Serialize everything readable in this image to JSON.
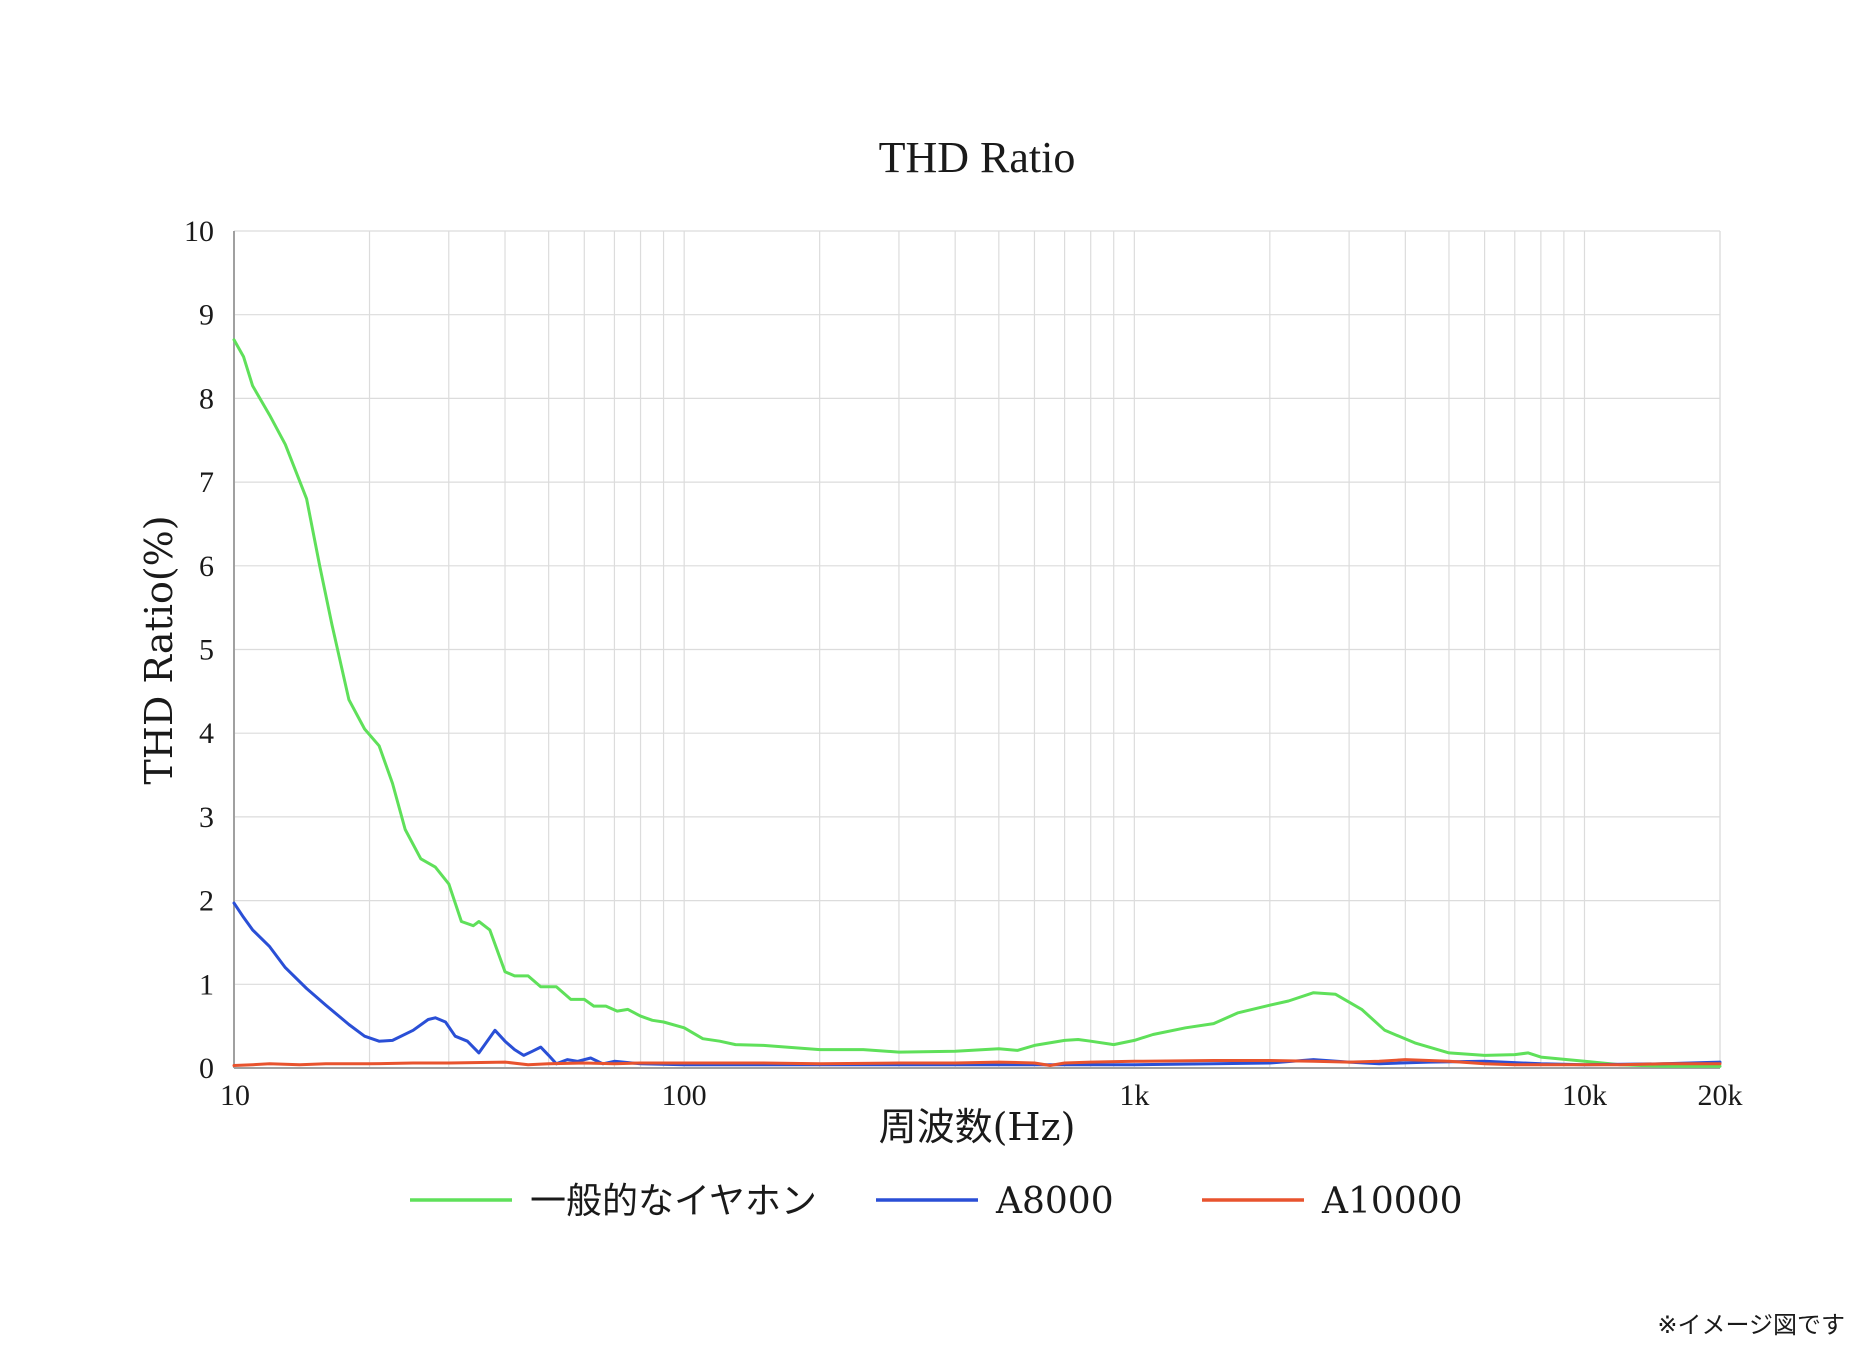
{
  "chart_data": {
    "type": "line",
    "title": "THD Ratio",
    "xlabel": "周波数(Hz)",
    "ylabel": "THD Ratio(%)",
    "x_scale": "log",
    "xlim": [
      10,
      20000
    ],
    "ylim": [
      0,
      10
    ],
    "x_ticks": [
      {
        "value": 10,
        "label": "10"
      },
      {
        "value": 100,
        "label": "100"
      },
      {
        "value": 1000,
        "label": "1k"
      },
      {
        "value": 10000,
        "label": "10k"
      },
      {
        "value": 20000,
        "label": "20k"
      }
    ],
    "y_ticks": [
      {
        "value": 0,
        "label": "0"
      },
      {
        "value": 1,
        "label": "1"
      },
      {
        "value": 2,
        "label": "2"
      },
      {
        "value": 3,
        "label": "3"
      },
      {
        "value": 4,
        "label": "4"
      },
      {
        "value": 5,
        "label": "5"
      },
      {
        "value": 6,
        "label": "6"
      },
      {
        "value": 7,
        "label": "7"
      },
      {
        "value": 8,
        "label": "8"
      },
      {
        "value": 9,
        "label": "9"
      },
      {
        "value": 10,
        "label": "10"
      }
    ],
    "grid": true,
    "legend_position": "bottom",
    "series": [
      {
        "name": "一般的なイヤホン",
        "color": "#5fe05a",
        "points": [
          [
            10,
            8.7
          ],
          [
            10.5,
            8.5
          ],
          [
            11,
            8.15
          ],
          [
            12,
            7.8
          ],
          [
            13,
            7.45
          ],
          [
            14.5,
            6.8
          ],
          [
            15.5,
            6.0
          ],
          [
            16.5,
            5.3
          ],
          [
            18,
            4.4
          ],
          [
            19.5,
            4.05
          ],
          [
            21,
            3.85
          ],
          [
            22.5,
            3.4
          ],
          [
            24,
            2.85
          ],
          [
            26,
            2.5
          ],
          [
            28,
            2.4
          ],
          [
            30,
            2.2
          ],
          [
            32,
            1.75
          ],
          [
            34,
            1.7
          ],
          [
            35,
            1.75
          ],
          [
            37,
            1.65
          ],
          [
            40,
            1.15
          ],
          [
            42,
            1.1
          ],
          [
            45,
            1.1
          ],
          [
            48,
            0.97
          ],
          [
            52,
            0.97
          ],
          [
            56,
            0.82
          ],
          [
            60,
            0.82
          ],
          [
            63,
            0.74
          ],
          [
            67,
            0.74
          ],
          [
            71,
            0.68
          ],
          [
            75,
            0.7
          ],
          [
            80,
            0.62
          ],
          [
            85,
            0.57
          ],
          [
            90,
            0.55
          ],
          [
            100,
            0.48
          ],
          [
            110,
            0.35
          ],
          [
            120,
            0.32
          ],
          [
            130,
            0.28
          ],
          [
            150,
            0.27
          ],
          [
            200,
            0.22
          ],
          [
            250,
            0.22
          ],
          [
            300,
            0.19
          ],
          [
            400,
            0.2
          ],
          [
            500,
            0.23
          ],
          [
            550,
            0.21
          ],
          [
            600,
            0.27
          ],
          [
            700,
            0.33
          ],
          [
            750,
            0.34
          ],
          [
            800,
            0.32
          ],
          [
            900,
            0.28
          ],
          [
            1000,
            0.33
          ],
          [
            1100,
            0.4
          ],
          [
            1300,
            0.48
          ],
          [
            1500,
            0.53
          ],
          [
            1700,
            0.66
          ],
          [
            2000,
            0.75
          ],
          [
            2200,
            0.8
          ],
          [
            2500,
            0.9
          ],
          [
            2800,
            0.88
          ],
          [
            3200,
            0.7
          ],
          [
            3600,
            0.45
          ],
          [
            4200,
            0.3
          ],
          [
            5000,
            0.18
          ],
          [
            6000,
            0.15
          ],
          [
            7000,
            0.16
          ],
          [
            7500,
            0.18
          ],
          [
            8000,
            0.13
          ],
          [
            10000,
            0.08
          ],
          [
            12000,
            0.04
          ],
          [
            15000,
            0.02
          ],
          [
            20000,
            0.02
          ]
        ]
      },
      {
        "name": "A8000",
        "color": "#2a4fd6",
        "points": [
          [
            10,
            1.97
          ],
          [
            10.5,
            1.8
          ],
          [
            11,
            1.65
          ],
          [
            12,
            1.45
          ],
          [
            13,
            1.2
          ],
          [
            14.5,
            0.95
          ],
          [
            16,
            0.75
          ],
          [
            18,
            0.52
          ],
          [
            19.5,
            0.38
          ],
          [
            21,
            0.32
          ],
          [
            22.5,
            0.33
          ],
          [
            25,
            0.45
          ],
          [
            27,
            0.58
          ],
          [
            28,
            0.6
          ],
          [
            29.5,
            0.55
          ],
          [
            31,
            0.38
          ],
          [
            33,
            0.32
          ],
          [
            35,
            0.18
          ],
          [
            38,
            0.45
          ],
          [
            40,
            0.32
          ],
          [
            42,
            0.22
          ],
          [
            44,
            0.15
          ],
          [
            46,
            0.2
          ],
          [
            48,
            0.25
          ],
          [
            50,
            0.15
          ],
          [
            52,
            0.05
          ],
          [
            55,
            0.1
          ],
          [
            58,
            0.08
          ],
          [
            62,
            0.12
          ],
          [
            66,
            0.05
          ],
          [
            70,
            0.08
          ],
          [
            80,
            0.05
          ],
          [
            100,
            0.04
          ],
          [
            200,
            0.04
          ],
          [
            500,
            0.04
          ],
          [
            1000,
            0.04
          ],
          [
            1500,
            0.05
          ],
          [
            2000,
            0.06
          ],
          [
            2500,
            0.1
          ],
          [
            3000,
            0.07
          ],
          [
            3500,
            0.05
          ],
          [
            4500,
            0.07
          ],
          [
            6000,
            0.08
          ],
          [
            8000,
            0.05
          ],
          [
            10000,
            0.04
          ],
          [
            15000,
            0.05
          ],
          [
            20000,
            0.07
          ]
        ]
      },
      {
        "name": "A10000",
        "color": "#e8532e",
        "points": [
          [
            10,
            0.03
          ],
          [
            11,
            0.04
          ],
          [
            12,
            0.05
          ],
          [
            14,
            0.04
          ],
          [
            16,
            0.05
          ],
          [
            20,
            0.05
          ],
          [
            25,
            0.06
          ],
          [
            30,
            0.06
          ],
          [
            40,
            0.07
          ],
          [
            45,
            0.04
          ],
          [
            50,
            0.05
          ],
          [
            60,
            0.06
          ],
          [
            70,
            0.05
          ],
          [
            80,
            0.06
          ],
          [
            100,
            0.06
          ],
          [
            150,
            0.06
          ],
          [
            200,
            0.05
          ],
          [
            300,
            0.06
          ],
          [
            400,
            0.06
          ],
          [
            500,
            0.07
          ],
          [
            600,
            0.06
          ],
          [
            650,
            0.03
          ],
          [
            700,
            0.06
          ],
          [
            800,
            0.07
          ],
          [
            1000,
            0.08
          ],
          [
            1500,
            0.09
          ],
          [
            2000,
            0.09
          ],
          [
            2500,
            0.08
          ],
          [
            3000,
            0.07
          ],
          [
            3500,
            0.08
          ],
          [
            4000,
            0.1
          ],
          [
            5000,
            0.08
          ],
          [
            6000,
            0.05
          ],
          [
            7000,
            0.04
          ],
          [
            8000,
            0.04
          ],
          [
            10000,
            0.04
          ],
          [
            12000,
            0.04
          ],
          [
            15000,
            0.05
          ],
          [
            20000,
            0.05
          ]
        ]
      }
    ]
  },
  "footnote": "※イメージ図です",
  "colors": {
    "grid": "#dcdcdc",
    "axis": "#a0a0a0",
    "background": "#ffffff"
  }
}
